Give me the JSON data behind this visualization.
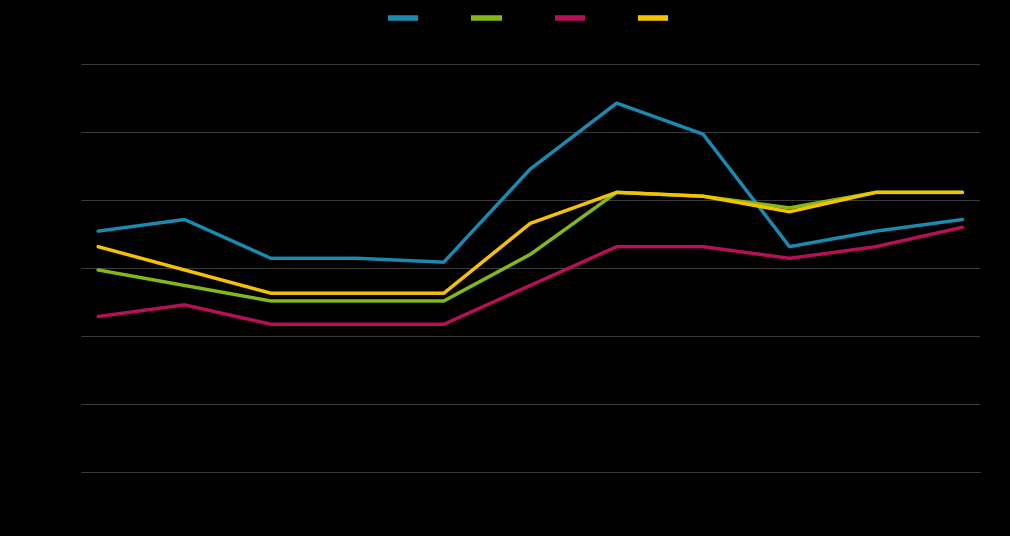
{
  "series": {
    "blue": [
      32,
      35,
      25,
      25,
      24,
      48,
      65,
      57,
      28,
      32,
      35
    ],
    "green": [
      22,
      18,
      14,
      14,
      14,
      26,
      42,
      41,
      38,
      42,
      42
    ],
    "red": [
      10,
      13,
      8,
      8,
      8,
      18,
      28,
      28,
      25,
      28,
      33
    ],
    "yellow": [
      28,
      22,
      16,
      16,
      16,
      34,
      42,
      41,
      37,
      42,
      42
    ]
  },
  "colors": {
    "blue": "#1b8ab0",
    "green": "#84b818",
    "red": "#b81058",
    "yellow": "#f5c200"
  },
  "background": "#000000",
  "plot_background": "#000000",
  "grid_color": "#555555",
  "line_width": 2.5,
  "ylim": [
    -30,
    75
  ],
  "num_grid_lines": 6,
  "legend_colors": {
    "blue": "#1b8ab0",
    "green": "#84b818",
    "red": "#b81058",
    "yellow": "#f5c200"
  }
}
